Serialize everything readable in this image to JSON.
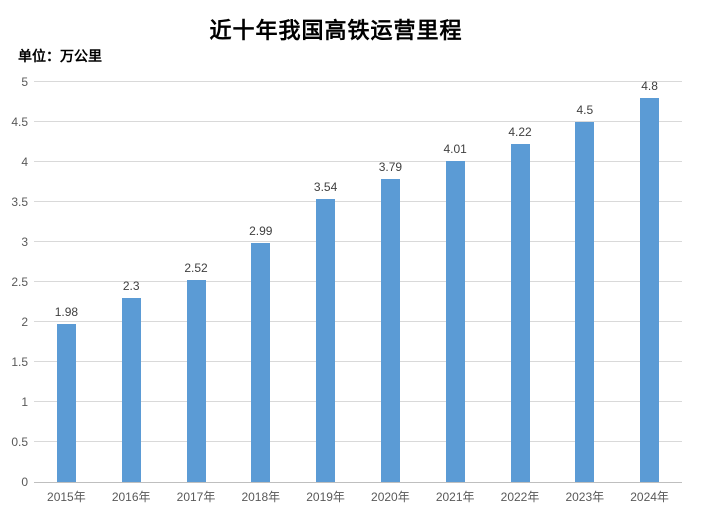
{
  "chart_data": {
    "type": "bar",
    "title": "近十年我国高铁运营里程",
    "unit_label": "单位：万公里",
    "categories": [
      "2015年",
      "2016年",
      "2017年",
      "2018年",
      "2019年",
      "2020年",
      "2021年",
      "2022年",
      "2023年",
      "2024年"
    ],
    "values": [
      1.98,
      2.3,
      2.52,
      2.99,
      3.54,
      3.79,
      4.01,
      4.22,
      4.5,
      4.8
    ],
    "value_labels": [
      "1.98",
      "2.3",
      "2.52",
      "2.99",
      "3.54",
      "3.79",
      "4.01",
      "4.22",
      "4.5",
      "4.8"
    ],
    "xlabel": "",
    "ylabel": "单位：万公里",
    "ylim": [
      0,
      5
    ],
    "ytick_step": 0.5,
    "ytick_labels": [
      "0",
      "0.5",
      "1",
      "1.5",
      "2",
      "2.5",
      "3",
      "3.5",
      "4",
      "4.5",
      "5"
    ],
    "grid": true,
    "legend": "none",
    "colors": {
      "bar": "#5b9bd5",
      "gridline": "#d9d9d9",
      "axis_line": "#bfbfbf",
      "tick_label": "#595959",
      "data_label": "#404040",
      "title": "#000000",
      "background": "#ffffff"
    }
  }
}
